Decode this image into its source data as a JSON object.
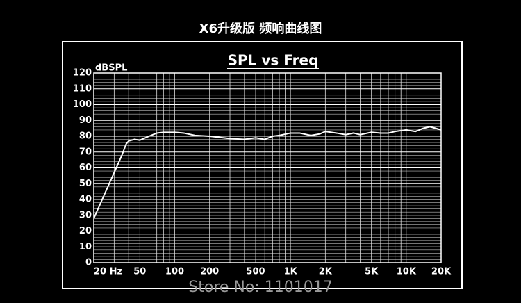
{
  "header": {
    "title": "X6升级版 频响曲线图"
  },
  "watermark": "Store No: 1101017",
  "chart_data": {
    "type": "line",
    "title": "SPL vs Freq",
    "ylabel": "dBSPL",
    "xscale": "log",
    "grid": true,
    "xlim": [
      20,
      20000
    ],
    "ylim": [
      0,
      120
    ],
    "xticks": [
      {
        "value": 20,
        "label": "20 Hz"
      },
      50,
      100,
      200,
      500,
      {
        "value": 1000,
        "label": "1K"
      },
      {
        "value": 2000,
        "label": "2K"
      },
      {
        "value": 5000,
        "label": "5K"
      },
      {
        "value": 10000,
        "label": "10K"
      },
      {
        "value": 20000,
        "label": "20K"
      }
    ],
    "yticks": [
      0,
      10,
      20,
      30,
      40,
      50,
      60,
      70,
      80,
      90,
      100,
      110,
      120
    ],
    "xgrid": [
      20,
      30,
      40,
      50,
      60,
      70,
      80,
      90,
      100,
      200,
      300,
      400,
      500,
      600,
      700,
      800,
      900,
      1000,
      2000,
      3000,
      4000,
      5000,
      6000,
      7000,
      8000,
      9000,
      10000,
      20000
    ],
    "ygrid": [
      2,
      4,
      6,
      8,
      12,
      14,
      16,
      18,
      22,
      24,
      26,
      28,
      32,
      34,
      36,
      38,
      42,
      44,
      46,
      48,
      52,
      54,
      56,
      58,
      62,
      64,
      66,
      68,
      72,
      74,
      76,
      78,
      82,
      84,
      86,
      88,
      92,
      94,
      96,
      98,
      102,
      104,
      106,
      108,
      112,
      114,
      116,
      118
    ],
    "x": [
      20,
      25,
      30,
      35,
      38,
      40,
      45,
      50,
      60,
      70,
      80,
      100,
      120,
      150,
      200,
      300,
      400,
      500,
      600,
      700,
      800,
      1000,
      1200,
      1500,
      1800,
      2000,
      2500,
      3000,
      3500,
      4000,
      5000,
      6000,
      7000,
      8000,
      10000,
      12000,
      14000,
      16000,
      18000,
      20000
    ],
    "series": [
      {
        "color": "#ffffff",
        "values": [
          28,
          44,
          57,
          68,
          75,
          77,
          78,
          77.5,
          80,
          82,
          82.5,
          82.5,
          82,
          80.5,
          80,
          78.5,
          78,
          79,
          78,
          80,
          80.5,
          82,
          82,
          80.5,
          81.5,
          83,
          82,
          81,
          82,
          81,
          82.5,
          82,
          82,
          83,
          84,
          83,
          85,
          86,
          85,
          84
        ]
      }
    ]
  }
}
